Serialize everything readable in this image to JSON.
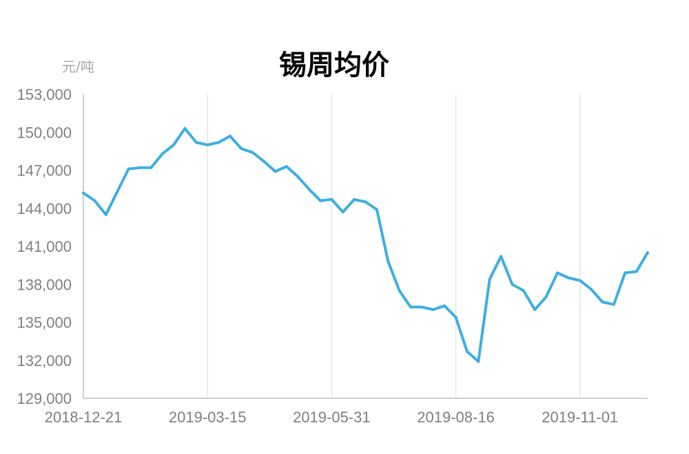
{
  "chart_data": {
    "type": "line",
    "title": "锡周均价",
    "ylabel": "元/吨",
    "xlabel": "",
    "ylim": [
      129000,
      153000
    ],
    "yticks": [
      "153,000",
      "150,000",
      "147,000",
      "144,000",
      "141,000",
      "138,000",
      "135,000",
      "132,000",
      "129,000"
    ],
    "ytick_values": [
      153000,
      150000,
      147000,
      144000,
      141000,
      138000,
      135000,
      132000,
      129000
    ],
    "xtick_labels": [
      "2018-12-21",
      "2019-03-15",
      "2019-05-31",
      "2019-08-16",
      "2019-11-01"
    ],
    "xtick_indices": [
      0,
      11,
      22,
      33,
      44
    ],
    "grid": "vertical",
    "color": "#3daee3",
    "series": [
      {
        "values": [
          145200,
          144600,
          143500,
          145300,
          147100,
          147200,
          147200,
          148300,
          149000,
          150300,
          149200,
          149000,
          149200,
          149700,
          148700,
          148400,
          147700,
          146900,
          147300,
          146500,
          145500,
          144600,
          144700,
          143700,
          144700,
          144500,
          143900,
          139800,
          137500,
          136200,
          136200,
          136000,
          136300,
          135400,
          132700,
          131900,
          138400,
          140200,
          138000,
          137500,
          136000,
          137000,
          138900,
          138500,
          138300,
          137600,
          136600,
          136400,
          138900,
          139000,
          140500
        ]
      }
    ]
  }
}
